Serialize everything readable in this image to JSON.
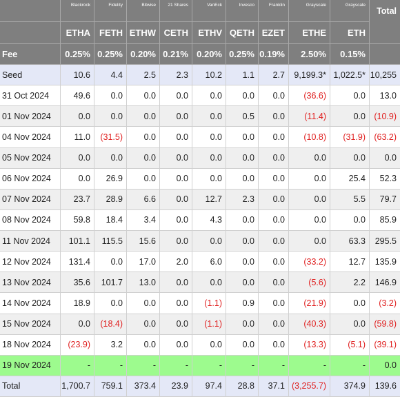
{
  "header": {
    "issuers": [
      "Blackrock",
      "Fidelity",
      "Bitwise",
      "21 Shares",
      "VanEck",
      "Invesco",
      "Franklin",
      "Grayscale",
      "Grayscale"
    ],
    "total_label": "Total",
    "tickers": [
      "ETHA",
      "FETH",
      "ETHW",
      "CETH",
      "ETHV",
      "QETH",
      "EZET",
      "ETHE",
      "ETH"
    ],
    "fee_label": "Fee",
    "fees": [
      "0.25%",
      "0.25%",
      "0.20%",
      "0.21%",
      "0.20%",
      "0.25%",
      "0.19%",
      "2.50%",
      "0.15%"
    ]
  },
  "rows": [
    {
      "label": "Seed",
      "values": [
        "10.6",
        "4.4",
        "2.5",
        "2.3",
        "10.2",
        "1.1",
        "2.7",
        "9,199.3*",
        "1,022.5*",
        "10,255"
      ]
    },
    {
      "label": "31 Oct 2024",
      "values": [
        "49.6",
        "0.0",
        "0.0",
        "0.0",
        "0.0",
        "0.0",
        "0.0",
        "(36.6)",
        "0.0",
        "13.0"
      ]
    },
    {
      "label": "01 Nov 2024",
      "values": [
        "0.0",
        "0.0",
        "0.0",
        "0.0",
        "0.0",
        "0.5",
        "0.0",
        "(11.4)",
        "0.0",
        "(10.9)"
      ]
    },
    {
      "label": "04 Nov 2024",
      "values": [
        "11.0",
        "(31.5)",
        "0.0",
        "0.0",
        "0.0",
        "0.0",
        "0.0",
        "(10.8)",
        "(31.9)",
        "(63.2)"
      ]
    },
    {
      "label": "05 Nov 2024",
      "values": [
        "0.0",
        "0.0",
        "0.0",
        "0.0",
        "0.0",
        "0.0",
        "0.0",
        "0.0",
        "0.0",
        "0.0"
      ]
    },
    {
      "label": "06 Nov 2024",
      "values": [
        "0.0",
        "26.9",
        "0.0",
        "0.0",
        "0.0",
        "0.0",
        "0.0",
        "0.0",
        "25.4",
        "52.3"
      ]
    },
    {
      "label": "07 Nov 2024",
      "values": [
        "23.7",
        "28.9",
        "6.6",
        "0.0",
        "12.7",
        "2.3",
        "0.0",
        "0.0",
        "5.5",
        "79.7"
      ]
    },
    {
      "label": "08 Nov 2024",
      "values": [
        "59.8",
        "18.4",
        "3.4",
        "0.0",
        "4.3",
        "0.0",
        "0.0",
        "0.0",
        "0.0",
        "85.9"
      ]
    },
    {
      "label": "11 Nov 2024",
      "values": [
        "101.1",
        "115.5",
        "15.6",
        "0.0",
        "0.0",
        "0.0",
        "0.0",
        "0.0",
        "63.3",
        "295.5"
      ]
    },
    {
      "label": "12 Nov 2024",
      "values": [
        "131.4",
        "0.0",
        "17.0",
        "2.0",
        "6.0",
        "0.0",
        "0.0",
        "(33.2)",
        "12.7",
        "135.9"
      ]
    },
    {
      "label": "13 Nov 2024",
      "values": [
        "35.6",
        "101.7",
        "13.0",
        "0.0",
        "0.0",
        "0.0",
        "0.0",
        "(5.6)",
        "2.2",
        "146.9"
      ]
    },
    {
      "label": "14 Nov 2024",
      "values": [
        "18.9",
        "0.0",
        "0.0",
        "0.0",
        "(1.1)",
        "0.9",
        "0.0",
        "(21.9)",
        "0.0",
        "(3.2)"
      ]
    },
    {
      "label": "15 Nov 2024",
      "values": [
        "0.0",
        "(18.4)",
        "0.0",
        "0.0",
        "(1.1)",
        "0.0",
        "0.0",
        "(40.3)",
        "0.0",
        "(59.8)"
      ]
    },
    {
      "label": "18 Nov 2024",
      "values": [
        "(23.9)",
        "3.2",
        "0.0",
        "0.0",
        "0.0",
        "0.0",
        "0.0",
        "(13.3)",
        "(5.1)",
        "(39.1)"
      ]
    },
    {
      "label": "19 Nov 2024",
      "values": [
        "-",
        "-",
        "-",
        "-",
        "-",
        "-",
        "-",
        "-",
        "-",
        "0.0"
      ]
    },
    {
      "label": "Total",
      "values": [
        "1,700.7",
        "759.1",
        "373.4",
        "23.9",
        "97.4",
        "28.8",
        "37.1",
        "(3,255.7)",
        "374.9",
        "139.6"
      ]
    }
  ],
  "colors": {
    "header_bg": "#7f7f7f",
    "negative": "#e02020",
    "seed_total_bg": "#e4e8f7",
    "stripe_bg": "#efefef",
    "highlight_bg": "#9dfb8e"
  }
}
